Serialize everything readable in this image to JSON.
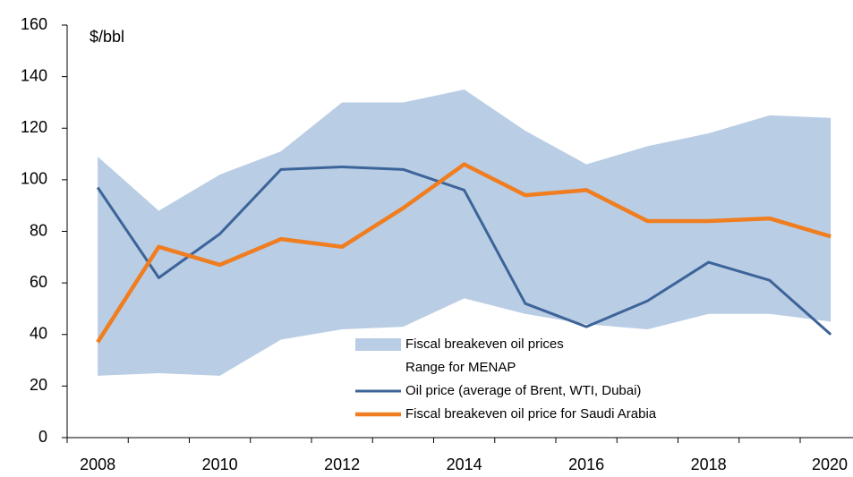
{
  "chart_data": {
    "type": "line",
    "y_unit_label": "$/bbl",
    "categories": [
      "2008",
      null,
      "2010",
      null,
      "2012",
      null,
      "2014",
      null,
      "2016",
      null,
      "2018",
      null,
      "2020"
    ],
    "range": {
      "name": [
        "Fiscal breakeven oil prices",
        "Range for MENAP"
      ],
      "color": "#b9cde5",
      "high": [
        109,
        88,
        102,
        111,
        130,
        130,
        135,
        119,
        106,
        113,
        118,
        125,
        124
      ],
      "low": [
        24,
        25,
        24,
        38,
        42,
        43,
        54,
        48,
        44,
        42,
        48,
        48,
        45
      ]
    },
    "series": [
      {
        "name": "Oil price (average of Brent, WTI, Dubai)",
        "color": "#3d6499",
        "values": [
          97,
          62,
          79,
          104,
          105,
          104,
          96,
          52,
          43,
          53,
          68,
          61,
          40
        ]
      },
      {
        "name": "Fiscal breakeven oil price for Saudi Arabia",
        "color": "#f07d1f",
        "values": [
          37,
          74,
          67,
          77,
          74,
          89,
          106,
          94,
          96,
          84,
          84,
          85,
          78
        ]
      }
    ],
    "ylim": [
      0,
      160
    ],
    "yticks": [
      0,
      20,
      40,
      60,
      80,
      100,
      120,
      140,
      160
    ],
    "grid": false
  }
}
